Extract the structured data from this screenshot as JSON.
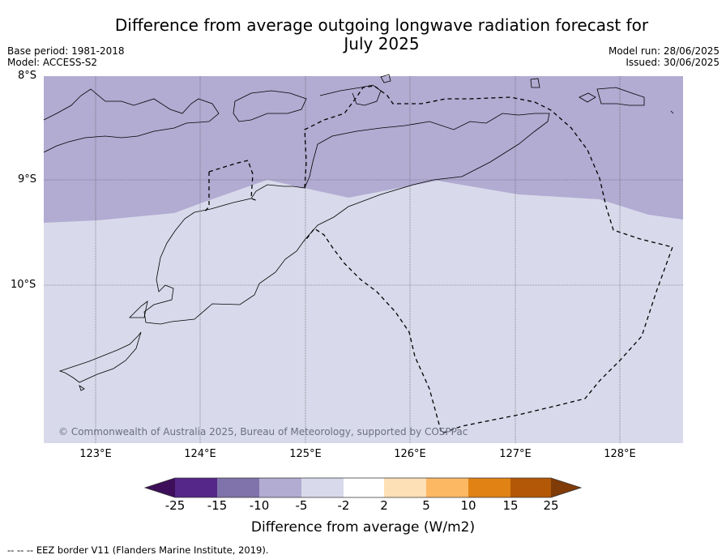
{
  "title_line1": "Difference from average outgoing longwave radiation forecast for",
  "title_line2": "July 2025",
  "base_period": "Base period: 1981-2018",
  "model": "Model: ACCESS-S2",
  "model_run": "Model run: 28/06/2025",
  "issued": "Issued: 30/06/2025",
  "lat_labels": [
    "8°S",
    "9°S",
    "10°S"
  ],
  "lon_labels": [
    "123°E",
    "124°E",
    "125°E",
    "126°E",
    "127°E",
    "128°E"
  ],
  "copyright": "© Commonwealth of Australia 2025, Bureau of Meteorology, supported by COSPPac",
  "colorbar": {
    "title": "Difference from average (W/m2)",
    "ticks": [
      "-25",
      "-15",
      "-10",
      "-5",
      "-2",
      "2",
      "5",
      "10",
      "15",
      "25"
    ],
    "colors": [
      "#3d0f5a",
      "#542788",
      "#8073ac",
      "#b2abd2",
      "#d8daeb",
      "#ffffff",
      "#fee0b6",
      "#fdb863",
      "#e08214",
      "#b35806",
      "#7f3b08"
    ]
  },
  "map_colors": {
    "band_minus5_to_minus10": "#b2abd2",
    "band_minus2_to_minus5": "#d8daeb"
  },
  "footnote": "--  --  -- EEZ border V11 (Flanders Marine Institute, 2019)."
}
